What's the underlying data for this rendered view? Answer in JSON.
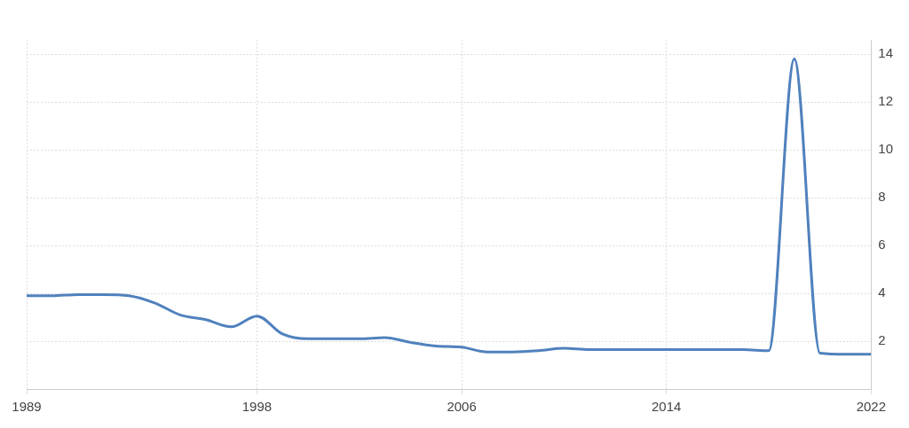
{
  "chart_data": {
    "type": "line",
    "x": [
      1989,
      1990,
      1991,
      1992,
      1993,
      1994,
      1995,
      1996,
      1997,
      1998,
      1999,
      2000,
      2001,
      2002,
      2003,
      2004,
      2005,
      2006,
      2007,
      2008,
      2009,
      2010,
      2011,
      2012,
      2013,
      2014,
      2015,
      2016,
      2017,
      2018,
      2019,
      2020,
      2021,
      2022
    ],
    "values": [
      3.9,
      3.9,
      3.95,
      3.95,
      3.9,
      3.6,
      3.1,
      2.9,
      2.6,
      3.05,
      2.3,
      2.1,
      2.1,
      2.1,
      2.15,
      1.95,
      1.8,
      1.75,
      1.55,
      1.55,
      1.6,
      1.7,
      1.65,
      1.65,
      1.65,
      1.65,
      1.65,
      1.65,
      1.65,
      1.6,
      13.8,
      1.5,
      1.45,
      1.45
    ],
    "color": "#4f81bd",
    "xlim": [
      1989,
      2022
    ],
    "xticks": [
      1989,
      1998,
      2006,
      2014,
      2022
    ],
    "ylim": [
      0,
      14.6
    ],
    "yticks": [
      2,
      4,
      6,
      8,
      10,
      12,
      14
    ],
    "grid": true
  }
}
